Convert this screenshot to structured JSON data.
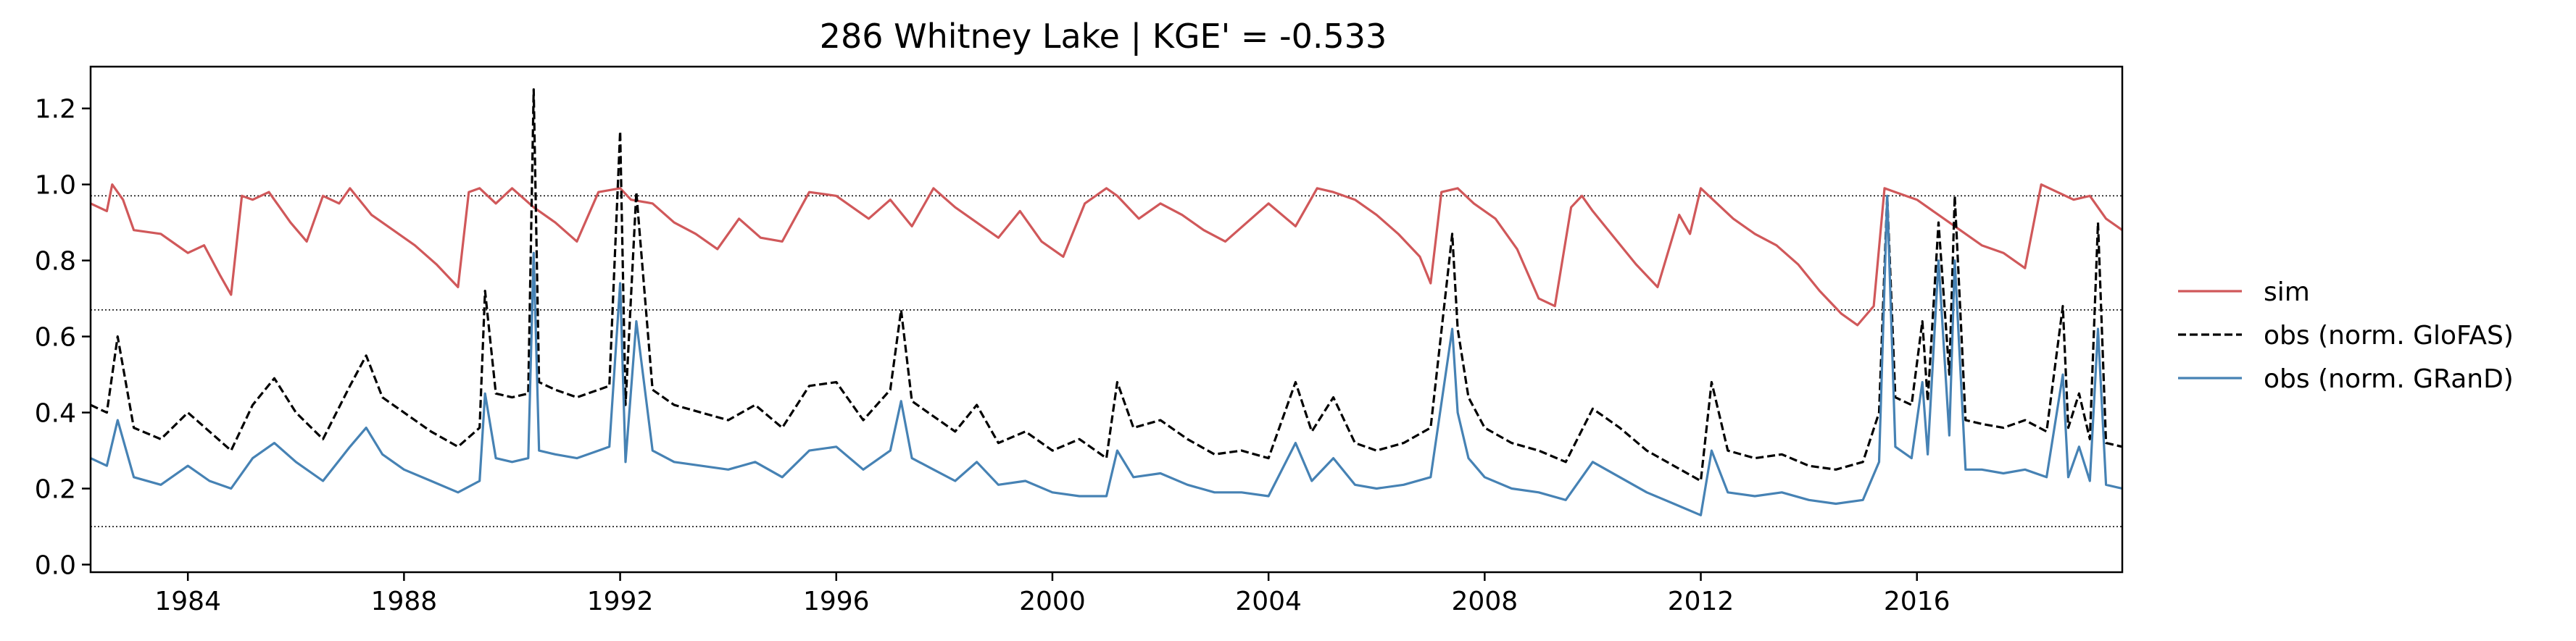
{
  "chart_data": {
    "type": "line",
    "title": "286  Whitney Lake | KGE' = -0.533",
    "xlabel": "",
    "ylabel": "",
    "xlim": [
      1982.2,
      2019.8
    ],
    "ylim": [
      -0.02,
      1.31
    ],
    "x_ticks": [
      1984,
      1988,
      1992,
      1996,
      2000,
      2004,
      2008,
      2012,
      2016
    ],
    "x_tick_labels": [
      "1984",
      "1988",
      "1992",
      "1996",
      "2000",
      "2004",
      "2008",
      "2012",
      "2016"
    ],
    "y_ticks": [
      0.0,
      0.2,
      0.4,
      0.6,
      0.8,
      1.0,
      1.2
    ],
    "y_tick_labels": [
      "0.0",
      "0.2",
      "0.4",
      "0.6",
      "0.8",
      "1.0",
      "1.2"
    ],
    "reference_lines": [
      0.97,
      0.67,
      0.1
    ],
    "grid": false,
    "legend_position": "right",
    "colors": {
      "sim": "#d0585a",
      "obs_glofas": "#000000",
      "obs_grand": "#4682b4"
    },
    "series": [
      {
        "name": "sim",
        "style": "solid",
        "x": [
          1982.2,
          1982.5,
          1982.6,
          1982.8,
          1983.0,
          1983.5,
          1984.0,
          1984.3,
          1984.6,
          1984.8,
          1985.0,
          1985.2,
          1985.5,
          1985.9,
          1986.2,
          1986.5,
          1986.8,
          1987.0,
          1987.4,
          1987.8,
          1988.2,
          1988.6,
          1989.0,
          1989.2,
          1989.4,
          1989.7,
          1990.0,
          1990.4,
          1990.8,
          1991.2,
          1991.6,
          1992.0,
          1992.2,
          1992.6,
          1993.0,
          1993.4,
          1993.8,
          1994.2,
          1994.6,
          1995.0,
          1995.5,
          1996.0,
          1996.3,
          1996.6,
          1997.0,
          1997.4,
          1997.8,
          1998.2,
          1998.6,
          1999.0,
          1999.4,
          1999.8,
          2000.2,
          2000.6,
          2001.0,
          2001.2,
          2001.6,
          2002.0,
          2002.4,
          2002.8,
          2003.2,
          2003.6,
          2004.0,
          2004.5,
          2004.9,
          2005.2,
          2005.6,
          2006.0,
          2006.4,
          2006.8,
          2007.0,
          2007.2,
          2007.5,
          2007.8,
          2008.2,
          2008.6,
          2009.0,
          2009.3,
          2009.6,
          2009.8,
          2010.0,
          2010.4,
          2010.8,
          2011.2,
          2011.6,
          2011.8,
          2012.0,
          2012.3,
          2012.6,
          2013.0,
          2013.4,
          2013.8,
          2014.2,
          2014.6,
          2014.9,
          2015.2,
          2015.4,
          2015.6,
          2016.0,
          2016.4,
          2016.8,
          2017.2,
          2017.6,
          2018.0,
          2018.3,
          2018.6,
          2018.9,
          2019.2,
          2019.5,
          2019.8
        ],
        "y": [
          0.95,
          0.93,
          1.0,
          0.96,
          0.88,
          0.87,
          0.82,
          0.84,
          0.76,
          0.71,
          0.97,
          0.96,
          0.98,
          0.9,
          0.85,
          0.97,
          0.95,
          0.99,
          0.92,
          0.88,
          0.84,
          0.79,
          0.73,
          0.98,
          0.99,
          0.95,
          0.99,
          0.94,
          0.9,
          0.85,
          0.98,
          0.99,
          0.96,
          0.95,
          0.9,
          0.87,
          0.83,
          0.91,
          0.86,
          0.85,
          0.98,
          0.97,
          0.94,
          0.91,
          0.96,
          0.89,
          0.99,
          0.94,
          0.9,
          0.86,
          0.93,
          0.85,
          0.81,
          0.95,
          0.99,
          0.97,
          0.91,
          0.95,
          0.92,
          0.88,
          0.85,
          0.9,
          0.95,
          0.89,
          0.99,
          0.98,
          0.96,
          0.92,
          0.87,
          0.81,
          0.74,
          0.98,
          0.99,
          0.95,
          0.91,
          0.83,
          0.7,
          0.68,
          0.94,
          0.97,
          0.93,
          0.86,
          0.79,
          0.73,
          0.92,
          0.87,
          0.99,
          0.95,
          0.91,
          0.87,
          0.84,
          0.79,
          0.72,
          0.66,
          0.63,
          0.68,
          0.99,
          0.98,
          0.96,
          0.92,
          0.88,
          0.84,
          0.82,
          0.78,
          1.0,
          0.98,
          0.96,
          0.97,
          0.91,
          0.88
        ]
      },
      {
        "name": "obs (norm. GloFAS)",
        "style": "dashed",
        "x": [
          1982.2,
          1982.5,
          1982.7,
          1983.0,
          1983.5,
          1984.0,
          1984.4,
          1984.8,
          1985.2,
          1985.6,
          1986.0,
          1986.5,
          1987.0,
          1987.3,
          1987.6,
          1988.0,
          1988.5,
          1989.0,
          1989.4,
          1989.5,
          1989.7,
          1990.0,
          1990.3,
          1990.4,
          1990.5,
          1990.8,
          1991.2,
          1991.6,
          1991.8,
          1992.0,
          1992.1,
          1992.3,
          1992.6,
          1993.0,
          1993.5,
          1994.0,
          1994.5,
          1995.0,
          1995.5,
          1996.0,
          1996.5,
          1997.0,
          1997.2,
          1997.4,
          1997.8,
          1998.2,
          1998.6,
          1999.0,
          1999.5,
          2000.0,
          2000.5,
          2001.0,
          2001.2,
          2001.5,
          2002.0,
          2002.5,
          2003.0,
          2003.5,
          2004.0,
          2004.5,
          2004.8,
          2005.2,
          2005.6,
          2006.0,
          2006.5,
          2007.0,
          2007.4,
          2007.5,
          2007.7,
          2008.0,
          2008.5,
          2009.0,
          2009.5,
          2010.0,
          2010.5,
          2011.0,
          2011.5,
          2012.0,
          2012.2,
          2012.5,
          2013.0,
          2013.5,
          2014.0,
          2014.5,
          2015.0,
          2015.3,
          2015.45,
          2015.6,
          2015.9,
          2016.1,
          2016.2,
          2016.4,
          2016.6,
          2016.7,
          2016.9,
          2017.2,
          2017.6,
          2018.0,
          2018.4,
          2018.7,
          2018.8,
          2019.0,
          2019.2,
          2019.35,
          2019.5,
          2019.8
        ],
        "y": [
          0.42,
          0.4,
          0.6,
          0.36,
          0.33,
          0.4,
          0.35,
          0.3,
          0.42,
          0.49,
          0.4,
          0.33,
          0.47,
          0.55,
          0.44,
          0.4,
          0.35,
          0.31,
          0.36,
          0.72,
          0.45,
          0.44,
          0.45,
          1.25,
          0.48,
          0.46,
          0.44,
          0.46,
          0.47,
          1.14,
          0.42,
          0.98,
          0.46,
          0.42,
          0.4,
          0.38,
          0.42,
          0.36,
          0.47,
          0.48,
          0.38,
          0.46,
          0.67,
          0.43,
          0.39,
          0.35,
          0.42,
          0.32,
          0.35,
          0.3,
          0.33,
          0.28,
          0.48,
          0.36,
          0.38,
          0.33,
          0.29,
          0.3,
          0.28,
          0.48,
          0.35,
          0.44,
          0.32,
          0.3,
          0.32,
          0.36,
          0.87,
          0.62,
          0.44,
          0.36,
          0.32,
          0.3,
          0.27,
          0.41,
          0.36,
          0.3,
          0.26,
          0.22,
          0.48,
          0.3,
          0.28,
          0.29,
          0.26,
          0.25,
          0.27,
          0.4,
          0.97,
          0.44,
          0.42,
          0.64,
          0.43,
          0.9,
          0.5,
          0.97,
          0.38,
          0.37,
          0.36,
          0.38,
          0.35,
          0.68,
          0.36,
          0.45,
          0.33,
          0.9,
          0.32,
          0.31
        ]
      },
      {
        "name": "obs (norm. GRanD)",
        "style": "solid",
        "x": [
          1982.2,
          1982.5,
          1982.7,
          1983.0,
          1983.5,
          1984.0,
          1984.4,
          1984.8,
          1985.2,
          1985.6,
          1986.0,
          1986.5,
          1987.0,
          1987.3,
          1987.6,
          1988.0,
          1988.5,
          1989.0,
          1989.4,
          1989.5,
          1989.7,
          1990.0,
          1990.3,
          1990.4,
          1990.5,
          1990.8,
          1991.2,
          1991.6,
          1991.8,
          1992.0,
          1992.1,
          1992.3,
          1992.6,
          1993.0,
          1993.5,
          1994.0,
          1994.5,
          1995.0,
          1995.5,
          1996.0,
          1996.5,
          1997.0,
          1997.2,
          1997.4,
          1997.8,
          1998.2,
          1998.6,
          1999.0,
          1999.5,
          2000.0,
          2000.5,
          2001.0,
          2001.2,
          2001.5,
          2002.0,
          2002.5,
          2003.0,
          2003.5,
          2004.0,
          2004.5,
          2004.8,
          2005.2,
          2005.6,
          2006.0,
          2006.5,
          2007.0,
          2007.4,
          2007.5,
          2007.7,
          2008.0,
          2008.5,
          2009.0,
          2009.5,
          2010.0,
          2010.5,
          2011.0,
          2011.5,
          2012.0,
          2012.2,
          2012.5,
          2013.0,
          2013.5,
          2014.0,
          2014.5,
          2015.0,
          2015.3,
          2015.45,
          2015.6,
          2015.9,
          2016.1,
          2016.2,
          2016.4,
          2016.6,
          2016.7,
          2016.9,
          2017.2,
          2017.6,
          2018.0,
          2018.4,
          2018.7,
          2018.8,
          2019.0,
          2019.2,
          2019.35,
          2019.5,
          2019.8
        ],
        "y": [
          0.28,
          0.26,
          0.38,
          0.23,
          0.21,
          0.26,
          0.22,
          0.2,
          0.28,
          0.32,
          0.27,
          0.22,
          0.31,
          0.36,
          0.29,
          0.25,
          0.22,
          0.19,
          0.22,
          0.45,
          0.28,
          0.27,
          0.28,
          0.82,
          0.3,
          0.29,
          0.28,
          0.3,
          0.31,
          0.74,
          0.27,
          0.64,
          0.3,
          0.27,
          0.26,
          0.25,
          0.27,
          0.23,
          0.3,
          0.31,
          0.25,
          0.3,
          0.43,
          0.28,
          0.25,
          0.22,
          0.27,
          0.21,
          0.22,
          0.19,
          0.18,
          0.18,
          0.3,
          0.23,
          0.24,
          0.21,
          0.19,
          0.19,
          0.18,
          0.32,
          0.22,
          0.28,
          0.21,
          0.2,
          0.21,
          0.23,
          0.62,
          0.4,
          0.28,
          0.23,
          0.2,
          0.19,
          0.17,
          0.27,
          0.23,
          0.19,
          0.16,
          0.13,
          0.3,
          0.19,
          0.18,
          0.19,
          0.17,
          0.16,
          0.17,
          0.27,
          0.97,
          0.31,
          0.28,
          0.48,
          0.29,
          0.8,
          0.34,
          0.8,
          0.25,
          0.25,
          0.24,
          0.25,
          0.23,
          0.5,
          0.23,
          0.31,
          0.22,
          0.62,
          0.21,
          0.2
        ]
      }
    ]
  }
}
